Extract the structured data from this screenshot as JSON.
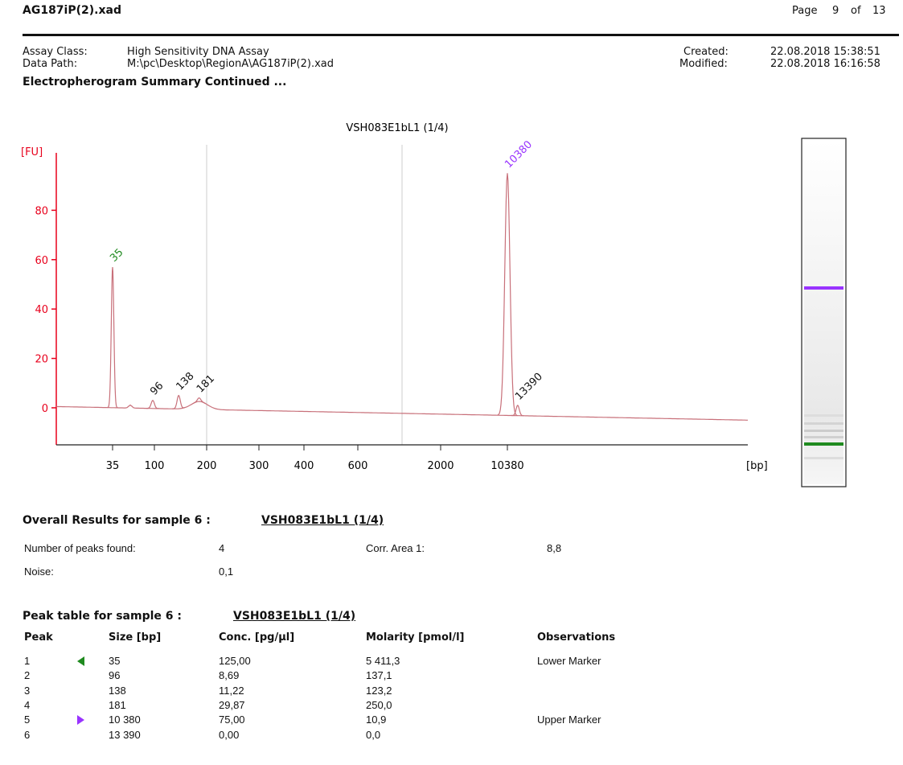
{
  "header": {
    "file": "AG187iP(2).xad",
    "page_label": "Page",
    "page": "9",
    "of_label": "of",
    "pages": "13"
  },
  "info": {
    "assay_class_label": "Assay Class:",
    "assay_class": "High Sensitivity DNA Assay",
    "data_path_label": "Data Path:",
    "data_path": "M:\\pc\\Desktop\\RegionA\\AG187iP(2).xad",
    "created_label": "Created:",
    "created": "22.08.2018 15:38:51",
    "modified_label": "Modified:",
    "modified": "22.08.2018 16:16:58"
  },
  "section_title": "Electropherogram Summary Continued ...",
  "chart_data": {
    "type": "electropherogram",
    "title": "VSH083E1bL1 (1/4)",
    "y_label": "[FU]",
    "x_label": "[bp]",
    "ylim": [
      -15,
      100
    ],
    "yticks": [
      0,
      20,
      40,
      60,
      80
    ],
    "xticks": [
      35,
      100,
      200,
      300,
      400,
      600,
      2000,
      10380
    ],
    "peaks": {
      "sizes": [
        35,
        96,
        138,
        181,
        10380,
        13390
      ],
      "heights": [
        57,
        3,
        5,
        4,
        95,
        1
      ],
      "label_colors": [
        "#1f8a1f",
        "#111111",
        "#111111",
        "#111111",
        "#9933ff",
        "#111111"
      ]
    },
    "axis_color": "#e8001c",
    "line_color": "#c8707a"
  },
  "overall": {
    "title": "Overall Results for sample 6 :",
    "sample": "VSH083E1bL1 (1/4)",
    "rows": [
      [
        "Number of peaks found:",
        "4",
        "Corr. Area 1:",
        "8,8"
      ],
      [
        "Noise:",
        "0,1"
      ]
    ]
  },
  "peak_table": {
    "title": "Peak table for sample 6 :",
    "sample": "VSH083E1bL1 (1/4)",
    "columns": [
      "Peak",
      "Size [bp]",
      "Conc. [pg/µl]",
      "Molarity [pmol/l]",
      "Observations"
    ],
    "rows": [
      [
        "1",
        "35",
        "125,00",
        "5 411,3",
        "Lower Marker"
      ],
      [
        "2",
        "96",
        "8,69",
        "137,1"
      ],
      [
        "3",
        "138",
        "11,22",
        "123,2"
      ],
      [
        "4",
        "181",
        "29,87",
        "250,0"
      ],
      [
        "5",
        "10 380",
        "75,00",
        "10,9",
        "Upper Marker"
      ],
      [
        "6",
        "13 390",
        "0,00",
        "0,0"
      ]
    ]
  }
}
